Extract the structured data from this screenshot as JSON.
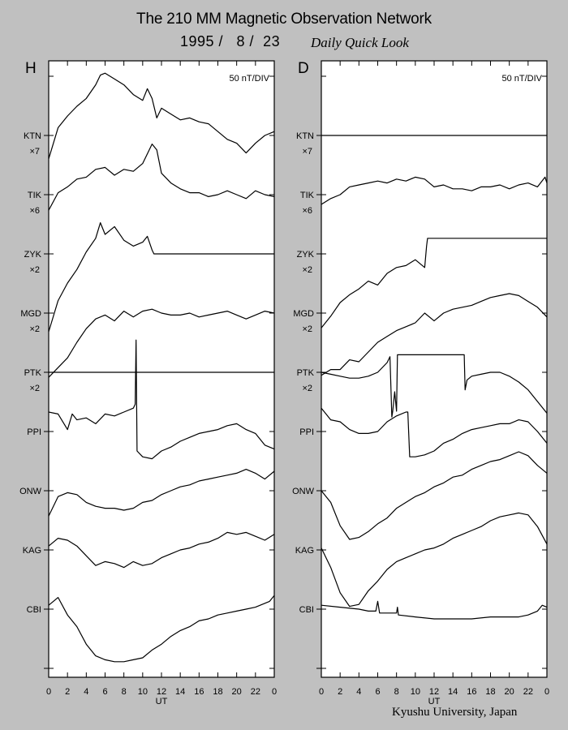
{
  "header": {
    "title": "The 210 MM Magnetic Observation Network",
    "date": "1995 /   8 /  23",
    "subtitle": "Daily Quick Look"
  },
  "footer": {
    "credit": "Kyushu University, Japan"
  },
  "chart_data": [
    {
      "type": "line",
      "panel_label": "H",
      "scale_label": "50 nT/DIV",
      "xlabel": "UT",
      "x_ticks": [
        "0",
        "2",
        "4",
        "6",
        "8",
        "10",
        "12",
        "14",
        "16",
        "18",
        "20",
        "22",
        "0"
      ],
      "xlim": [
        0,
        24
      ],
      "y_axis": "stacked stations; 1 division = 50 nT",
      "stations": [
        {
          "name": "KTN",
          "scale": "×7",
          "x": [
            0,
            1,
            2,
            3,
            4,
            5,
            5.5,
            6,
            7,
            8,
            9,
            10,
            10.5,
            11,
            11.5,
            12,
            13,
            14,
            15,
            16,
            17,
            18,
            19,
            20,
            21,
            22,
            23,
            24
          ],
          "y": [
            -1.2,
            0.4,
            1.0,
            1.5,
            1.9,
            2.6,
            3.1,
            3.2,
            2.9,
            2.6,
            2.1,
            1.8,
            2.4,
            1.9,
            0.9,
            1.4,
            1.1,
            0.8,
            0.9,
            0.7,
            0.6,
            0.2,
            -0.2,
            -0.4,
            -0.9,
            -0.4,
            0.0,
            0.2
          ]
        },
        {
          "name": "TIK",
          "scale": "×6",
          "x": [
            0,
            1,
            2,
            3,
            4,
            5,
            6,
            7,
            8,
            9,
            10,
            11,
            11.5,
            12,
            13,
            14,
            15,
            16,
            17,
            18,
            19,
            20,
            21,
            22,
            23,
            24
          ],
          "y": [
            -0.8,
            0.1,
            0.4,
            0.8,
            0.9,
            1.3,
            1.4,
            1.0,
            1.3,
            1.2,
            1.6,
            2.6,
            2.3,
            1.1,
            0.6,
            0.3,
            0.1,
            0.1,
            -0.1,
            0.0,
            0.2,
            0.0,
            -0.2,
            0.2,
            0.0,
            -0.1
          ]
        },
        {
          "name": "ZYK",
          "scale": "×2",
          "x": [
            0,
            1,
            2,
            3,
            4,
            5,
            5.5,
            6,
            7,
            8,
            9,
            10,
            10.5,
            11,
            11.2,
            11.3,
            24
          ],
          "y": [
            -4.0,
            -2.4,
            -1.5,
            -0.8,
            0.1,
            0.8,
            1.6,
            1.0,
            1.4,
            0.7,
            0.4,
            0.6,
            0.9,
            0.2,
            0.0,
            0.0,
            0.0
          ]
        },
        {
          "name": "MGD",
          "scale": "×2",
          "x": [
            0,
            1,
            2,
            3,
            4,
            5,
            6,
            7,
            8,
            9,
            10,
            11,
            12,
            13,
            14,
            15,
            16,
            17,
            18,
            19,
            20,
            21,
            22,
            23,
            24
          ],
          "y": [
            -3.3,
            -2.8,
            -2.3,
            -1.5,
            -0.8,
            -0.3,
            -0.1,
            -0.4,
            0.1,
            -0.2,
            0.1,
            0.2,
            0.0,
            -0.1,
            -0.1,
            0.0,
            -0.2,
            -0.1,
            0.0,
            0.1,
            -0.1,
            -0.3,
            -0.1,
            0.1,
            0.0
          ]
        },
        {
          "name": "PTK",
          "scale": "×2",
          "x": [
            0,
            24
          ],
          "y": [
            0,
            0
          ]
        },
        {
          "name": "PPI",
          "scale": "",
          "x": [
            0,
            1,
            2,
            2.5,
            3,
            4,
            5,
            6,
            7,
            8,
            9,
            9.2,
            9.3,
            9.4,
            10,
            11,
            12,
            13,
            14,
            15,
            16,
            17,
            18,
            19,
            20,
            21,
            22,
            23,
            24
          ],
          "y": [
            1.0,
            0.9,
            0.1,
            0.9,
            0.6,
            0.7,
            0.4,
            0.9,
            0.8,
            1.0,
            1.2,
            1.4,
            4.7,
            -1.0,
            -1.3,
            -1.4,
            -1.0,
            -0.8,
            -0.5,
            -0.3,
            -0.1,
            0.0,
            0.1,
            0.3,
            0.4,
            0.1,
            -0.1,
            -0.7,
            -0.9
          ]
        },
        {
          "name": "ONW",
          "scale": "",
          "x": [
            0,
            1,
            2,
            3,
            4,
            5,
            6,
            7,
            8,
            9,
            10,
            11,
            12,
            13,
            14,
            15,
            16,
            17,
            18,
            19,
            20,
            21,
            22,
            23,
            24
          ],
          "y": [
            -1.3,
            -0.3,
            -0.1,
            -0.2,
            -0.6,
            -0.8,
            -0.9,
            -0.9,
            -1.0,
            -0.9,
            -0.6,
            -0.5,
            -0.2,
            0.0,
            0.2,
            0.3,
            0.5,
            0.6,
            0.7,
            0.8,
            0.9,
            1.1,
            0.9,
            0.6,
            1.0
          ]
        },
        {
          "name": "KAG",
          "scale": "",
          "x": [
            0,
            1,
            2,
            3,
            4,
            5,
            6,
            7,
            8,
            9,
            10,
            11,
            12,
            13,
            14,
            15,
            16,
            17,
            18,
            19,
            20,
            21,
            22,
            23,
            24
          ],
          "y": [
            0.2,
            0.6,
            0.5,
            0.2,
            -0.3,
            -0.8,
            -0.6,
            -0.7,
            -0.9,
            -0.6,
            -0.8,
            -0.7,
            -0.4,
            -0.2,
            0.0,
            0.1,
            0.3,
            0.4,
            0.6,
            0.9,
            0.8,
            0.9,
            0.7,
            0.5,
            0.8
          ]
        },
        {
          "name": "CBI",
          "scale": "",
          "x": [
            0,
            1,
            2,
            3,
            4,
            5,
            6,
            7,
            8,
            9,
            10,
            11,
            12,
            13,
            14,
            15,
            16,
            17,
            18,
            19,
            20,
            21,
            22,
            23,
            23.5,
            24
          ],
          "y": [
            0.2,
            0.6,
            -0.3,
            -0.9,
            -1.8,
            -2.4,
            -2.6,
            -2.7,
            -2.7,
            -2.6,
            -2.5,
            -2.1,
            -1.8,
            -1.4,
            -1.1,
            -0.9,
            -0.6,
            -0.5,
            -0.3,
            -0.2,
            -0.1,
            0.0,
            0.1,
            0.3,
            0.4,
            0.7
          ]
        }
      ]
    },
    {
      "type": "line",
      "panel_label": "D",
      "scale_label": "50 nT/DIV",
      "xlabel": "UT",
      "x_ticks": [
        "0",
        "2",
        "4",
        "6",
        "8",
        "10",
        "12",
        "14",
        "16",
        "18",
        "20",
        "22",
        "0"
      ],
      "xlim": [
        0,
        24
      ],
      "y_axis": "stacked stations; 1 division = 50 nT",
      "stations": [
        {
          "name": "KTN",
          "scale": "×7",
          "x": [
            0,
            24
          ],
          "y": [
            0,
            0
          ]
        },
        {
          "name": "TIK",
          "scale": "×6",
          "x": [
            0,
            1,
            2,
            3,
            4,
            5,
            6,
            7,
            8,
            9,
            10,
            11,
            12,
            13,
            14,
            15,
            16,
            17,
            18,
            19,
            20,
            21,
            22,
            23,
            23.8,
            24
          ],
          "y": [
            -0.5,
            -0.2,
            0.0,
            0.4,
            0.5,
            0.6,
            0.7,
            0.6,
            0.8,
            0.7,
            0.9,
            0.8,
            0.4,
            0.5,
            0.3,
            0.3,
            0.2,
            0.4,
            0.4,
            0.5,
            0.3,
            0.5,
            0.6,
            0.4,
            0.9,
            0.6
          ]
        },
        {
          "name": "ZYK",
          "scale": "×2",
          "x": [
            0,
            1,
            2,
            3,
            4,
            5,
            6,
            7,
            8,
            9,
            10,
            11,
            11.2,
            11.3,
            24
          ],
          "y": [
            -3.8,
            -3.2,
            -2.5,
            -2.1,
            -1.8,
            -1.4,
            -1.6,
            -1.0,
            -0.7,
            -0.6,
            -0.3,
            -0.7,
            0.4,
            0.8,
            0.8
          ]
        },
        {
          "name": "MGD",
          "scale": "×2",
          "x": [
            0,
            1,
            2,
            3,
            4,
            5,
            6,
            7,
            8,
            9,
            10,
            11,
            12,
            13,
            14,
            15,
            16,
            17,
            18,
            19,
            20,
            21,
            22,
            23,
            24
          ],
          "y": [
            -3.2,
            -2.9,
            -2.9,
            -2.4,
            -2.5,
            -2.0,
            -1.5,
            -1.2,
            -0.9,
            -0.7,
            -0.5,
            0.0,
            -0.4,
            0.0,
            0.2,
            0.3,
            0.4,
            0.6,
            0.8,
            0.9,
            1.0,
            0.9,
            0.6,
            0.3,
            -0.2
          ]
        },
        {
          "name": "PTK",
          "scale": "×2",
          "x": [
            0,
            1,
            2,
            3,
            4,
            5,
            6,
            7,
            7.2,
            7.3,
            7.5,
            7.6,
            7.8,
            8,
            8.1,
            15.2,
            15.3,
            15.5,
            16,
            17,
            18,
            19,
            20,
            21,
            22,
            23,
            24
          ],
          "y": [
            0,
            -0.1,
            -0.2,
            -0.3,
            -0.3,
            -0.2,
            0.0,
            0.5,
            0.7,
            0.8,
            -2.3,
            -2.0,
            -1.0,
            -2.0,
            0.9,
            0.9,
            -0.9,
            -0.4,
            -0.2,
            -0.1,
            0.0,
            0.0,
            -0.2,
            -0.5,
            -0.9,
            -1.5,
            -2.1
          ]
        },
        {
          "name": "PPI",
          "scale": "",
          "x": [
            0,
            1,
            2,
            3,
            4,
            5,
            6,
            7,
            8,
            9,
            9.2,
            9.4,
            10,
            11,
            12,
            13,
            14,
            15,
            16,
            17,
            18,
            19,
            20,
            21,
            22,
            23,
            24
          ],
          "y": [
            1.2,
            0.6,
            0.5,
            0.1,
            -0.1,
            -0.1,
            0.0,
            0.5,
            0.8,
            1.0,
            1.0,
            -1.3,
            -1.3,
            -1.2,
            -1.0,
            -0.6,
            -0.4,
            -0.1,
            0.1,
            0.2,
            0.3,
            0.4,
            0.4,
            0.6,
            0.5,
            0.0,
            -0.6
          ]
        },
        {
          "name": "ONW",
          "scale": "",
          "x": [
            0,
            1,
            2,
            3,
            4,
            5,
            6,
            7,
            8,
            9,
            10,
            11,
            12,
            13,
            14,
            15,
            16,
            17,
            18,
            19,
            20,
            21,
            22,
            23,
            24
          ],
          "y": [
            0.0,
            -0.6,
            -1.8,
            -2.5,
            -2.4,
            -2.1,
            -1.7,
            -1.4,
            -0.9,
            -0.6,
            -0.3,
            -0.1,
            0.2,
            0.4,
            0.7,
            0.8,
            1.1,
            1.3,
            1.5,
            1.6,
            1.8,
            2.0,
            1.8,
            1.3,
            0.9
          ]
        },
        {
          "name": "KAG",
          "scale": "",
          "x": [
            0,
            1,
            2,
            3,
            4,
            5,
            6,
            7,
            8,
            9,
            10,
            11,
            12,
            13,
            14,
            15,
            16,
            17,
            18,
            19,
            20,
            21,
            22,
            23,
            24
          ],
          "y": [
            0.1,
            -0.9,
            -2.2,
            -2.9,
            -2.8,
            -2.1,
            -1.6,
            -1.0,
            -0.6,
            -0.4,
            -0.2,
            0.0,
            0.1,
            0.3,
            0.6,
            0.8,
            1.0,
            1.2,
            1.5,
            1.7,
            1.8,
            1.9,
            1.8,
            1.2,
            0.3
          ]
        },
        {
          "name": "CBI",
          "scale": "",
          "x": [
            0,
            2,
            4,
            5,
            5.8,
            6,
            6.2,
            8,
            8.1,
            8.2,
            10,
            12,
            14,
            16,
            18,
            20,
            21,
            22,
            23,
            23.5,
            24
          ],
          "y": [
            0.2,
            0.1,
            0.0,
            -0.1,
            -0.1,
            0.4,
            -0.2,
            -0.2,
            0.1,
            -0.3,
            -0.4,
            -0.5,
            -0.5,
            -0.5,
            -0.4,
            -0.4,
            -0.4,
            -0.3,
            -0.1,
            0.2,
            0.1
          ]
        }
      ]
    }
  ]
}
